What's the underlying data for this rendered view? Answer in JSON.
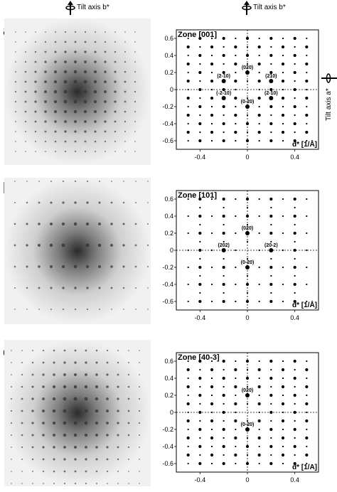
{
  "tilt_axis_b_label": "Tilt axis  b*",
  "tilt_axis_a_label": "Tilt axis  a*",
  "panels": [
    {
      "letter": "a",
      "zone_title": "Zone [001]",
      "axis_unit_label": "d* [1/Å]",
      "x_ticks": [
        "-0.4",
        "0",
        "0.4"
      ],
      "y_ticks": [
        "0.6",
        "0.4",
        "0.2",
        "0",
        "-0.2",
        "-0.4",
        "-0.6"
      ],
      "reflections": [
        {
          "label": "(020)",
          "x": 0,
          "y": 0.2
        },
        {
          "label": "(2-10)",
          "x": -0.2,
          "y": 0.1
        },
        {
          "label": "(210)",
          "x": 0.2,
          "y": 0.1
        },
        {
          "label": "(-2-10)",
          "x": -0.2,
          "y": -0.1
        },
        {
          "label": "(2-10)",
          "x": 0.2,
          "y": -0.1
        },
        {
          "label": "(0-20)",
          "x": 0,
          "y": -0.2
        }
      ]
    },
    {
      "letter": "b",
      "zone_title": "Zone [101]",
      "axis_unit_label": "d* [1/Å]",
      "x_ticks": [
        "-0.4",
        "0",
        "0.4"
      ],
      "y_ticks": [
        "0.6",
        "0.4",
        "0.2",
        "0",
        "-0.2",
        "-0.4",
        "-0.6"
      ],
      "reflections": [
        {
          "label": "(020)",
          "x": 0,
          "y": 0.2
        },
        {
          "label": "(202)",
          "x": -0.2,
          "y": 0
        },
        {
          "label": "(20-2)",
          "x": 0.2,
          "y": 0
        },
        {
          "label": "(0-20)",
          "x": 0,
          "y": -0.2
        }
      ]
    },
    {
      "letter": "c",
      "zone_title": "Zone [40-3]",
      "axis_unit_label": "d* [1/A]",
      "x_ticks": [
        "-0.4",
        "0",
        "0.4"
      ],
      "y_ticks": [
        "0.6",
        "0.4",
        "0.2",
        "0",
        "-0.2",
        "-0.4",
        "-0.6"
      ],
      "reflections": [
        {
          "label": "(020)",
          "x": 0,
          "y": 0.2
        },
        {
          "label": "(0-20)",
          "x": 0,
          "y": -0.2
        }
      ]
    }
  ],
  "colors": {
    "ink": "#000000",
    "photo_bg": "#f1f1f1"
  }
}
